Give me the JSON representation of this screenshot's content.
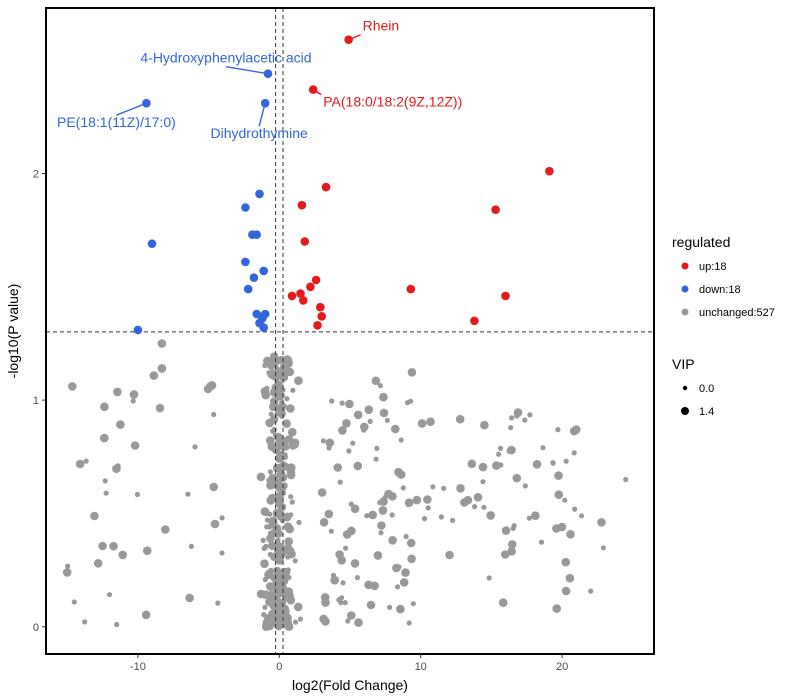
{
  "chart_data": {
    "type": "scatter",
    "title": "",
    "xlabel": "log2(Fold Change)",
    "ylabel": "-log10(P value)",
    "xlim": [
      -16.5,
      26.5
    ],
    "ylim": [
      -0.12,
      2.73
    ],
    "x_ticks": [
      -10,
      0,
      10,
      20
    ],
    "y_ticks": [
      0,
      1,
      2
    ],
    "thresholds": {
      "fc_low": -0.263,
      "fc_high": 0.263,
      "p": 1.301
    },
    "colors": {
      "up": "#e41a1c",
      "down": "#3366dd",
      "unchanged": "#999999"
    },
    "legend": {
      "placement": "right",
      "regulated_title": "regulated",
      "regulated_items": [
        {
          "key": "up",
          "label": "up:18"
        },
        {
          "key": "down",
          "label": "down:18"
        },
        {
          "key": "unchanged",
          "label": "unchanged:527"
        }
      ],
      "vip_title": "VIP",
      "vip_items": [
        {
          "label": "0.0",
          "size": "small"
        },
        {
          "label": "1.4",
          "size": "large"
        }
      ]
    },
    "annotations": [
      {
        "label": "Rhein",
        "x": 4.9,
        "y": 2.59,
        "color": "up",
        "anchor": "start",
        "dx": 14,
        "dy": -9
      },
      {
        "label": "4-Hydroxyphenylacetic acid",
        "x": -0.8,
        "y": 2.44,
        "color": "down",
        "anchor": "middle",
        "dx": -42,
        "dy": -11
      },
      {
        "label": "PA(18:0/18:2(9Z,12Z))",
        "x": 2.4,
        "y": 2.37,
        "color": "up",
        "anchor": "start",
        "dx": 10,
        "dy": 17
      },
      {
        "label": "PE(18:1(11Z)/17:0)",
        "x": -9.4,
        "y": 2.31,
        "color": "down",
        "anchor": "middle",
        "dx": -30,
        "dy": 24
      },
      {
        "label": "Dihydrothymine",
        "x": -1.0,
        "y": 2.31,
        "color": "down",
        "anchor": "middle",
        "dx": -6,
        "dy": 35
      }
    ],
    "series": [
      {
        "key": "up",
        "points": [
          [
            4.9,
            2.59
          ],
          [
            2.4,
            2.37
          ],
          [
            19.1,
            2.01
          ],
          [
            3.3,
            1.94
          ],
          [
            15.3,
            1.84
          ],
          [
            1.6,
            1.86
          ],
          [
            1.8,
            1.7
          ],
          [
            2.6,
            1.53
          ],
          [
            2.2,
            1.5
          ],
          [
            9.3,
            1.49
          ],
          [
            1.5,
            1.47
          ],
          [
            0.9,
            1.46
          ],
          [
            16.0,
            1.46
          ],
          [
            1.7,
            1.44
          ],
          [
            2.9,
            1.41
          ],
          [
            3.0,
            1.37
          ],
          [
            13.8,
            1.35
          ],
          [
            2.7,
            1.33
          ]
        ]
      },
      {
        "key": "down",
        "points": [
          [
            -0.8,
            2.44
          ],
          [
            -9.4,
            2.31
          ],
          [
            -1.0,
            2.31
          ],
          [
            -1.4,
            1.91
          ],
          [
            -2.4,
            1.85
          ],
          [
            -1.9,
            1.73
          ],
          [
            -1.6,
            1.73
          ],
          [
            -9.0,
            1.69
          ],
          [
            -2.4,
            1.61
          ],
          [
            -1.1,
            1.57
          ],
          [
            -1.8,
            1.54
          ],
          [
            -2.2,
            1.49
          ],
          [
            -1.6,
            1.38
          ],
          [
            -1.0,
            1.38
          ],
          [
            -1.2,
            1.36
          ],
          [
            -1.4,
            1.34
          ],
          [
            -1.1,
            1.32
          ],
          [
            -10.0,
            1.31
          ]
        ]
      }
    ]
  }
}
